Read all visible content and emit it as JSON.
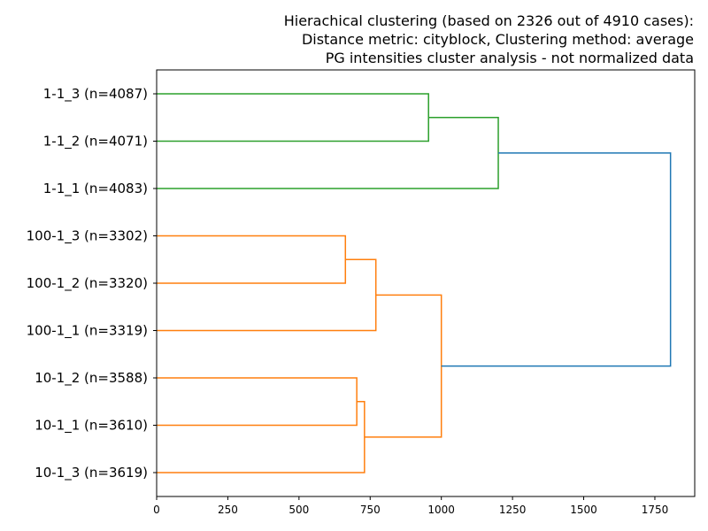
{
  "chart_data": {
    "type": "dendrogram",
    "orientation": "horizontal",
    "title_lines": [
      "Hierachical clustering (based on 2326 out of 4910 cases):",
      "Distance metric: cityblock, Clustering method: average",
      "PG intensities cluster analysis - not normalized data"
    ],
    "xlim": [
      0,
      1890
    ],
    "x_ticks": [
      0,
      250,
      500,
      750,
      1000,
      1250,
      1500,
      1750
    ],
    "leaves": [
      "1-1_3 (n=4087)",
      "1-1_2 (n=4071)",
      "1-1_1 (n=4083)",
      "100-1_3 (n=3302)",
      "100-1_2 (n=3320)",
      "100-1_1 (n=3319)",
      "10-1_2 (n=3588)",
      "10-1_1 (n=3610)",
      "10-1_3 (n=3619)"
    ],
    "merges": [
      {
        "id": "m1",
        "children": [
          "L0",
          "L1"
        ],
        "height": 955,
        "color": "#2ca02c"
      },
      {
        "id": "m2",
        "children": [
          "m1",
          "L2"
        ],
        "height": 1200,
        "color": "#2ca02c"
      },
      {
        "id": "m3",
        "children": [
          "L3",
          "L4"
        ],
        "height": 663,
        "color": "#ff7f0e"
      },
      {
        "id": "m4",
        "children": [
          "m3",
          "L5"
        ],
        "height": 770,
        "color": "#ff7f0e"
      },
      {
        "id": "m5",
        "children": [
          "L6",
          "L7"
        ],
        "height": 703,
        "color": "#ff7f0e"
      },
      {
        "id": "m6",
        "children": [
          "m5",
          "L8"
        ],
        "height": 730,
        "color": "#ff7f0e"
      },
      {
        "id": "m7",
        "children": [
          "m4",
          "m6"
        ],
        "height": 1000,
        "color": "#ff7f0e"
      },
      {
        "id": "m8",
        "children": [
          "m2",
          "m7"
        ],
        "height": 1805,
        "color": "#1f77b4"
      }
    ]
  }
}
